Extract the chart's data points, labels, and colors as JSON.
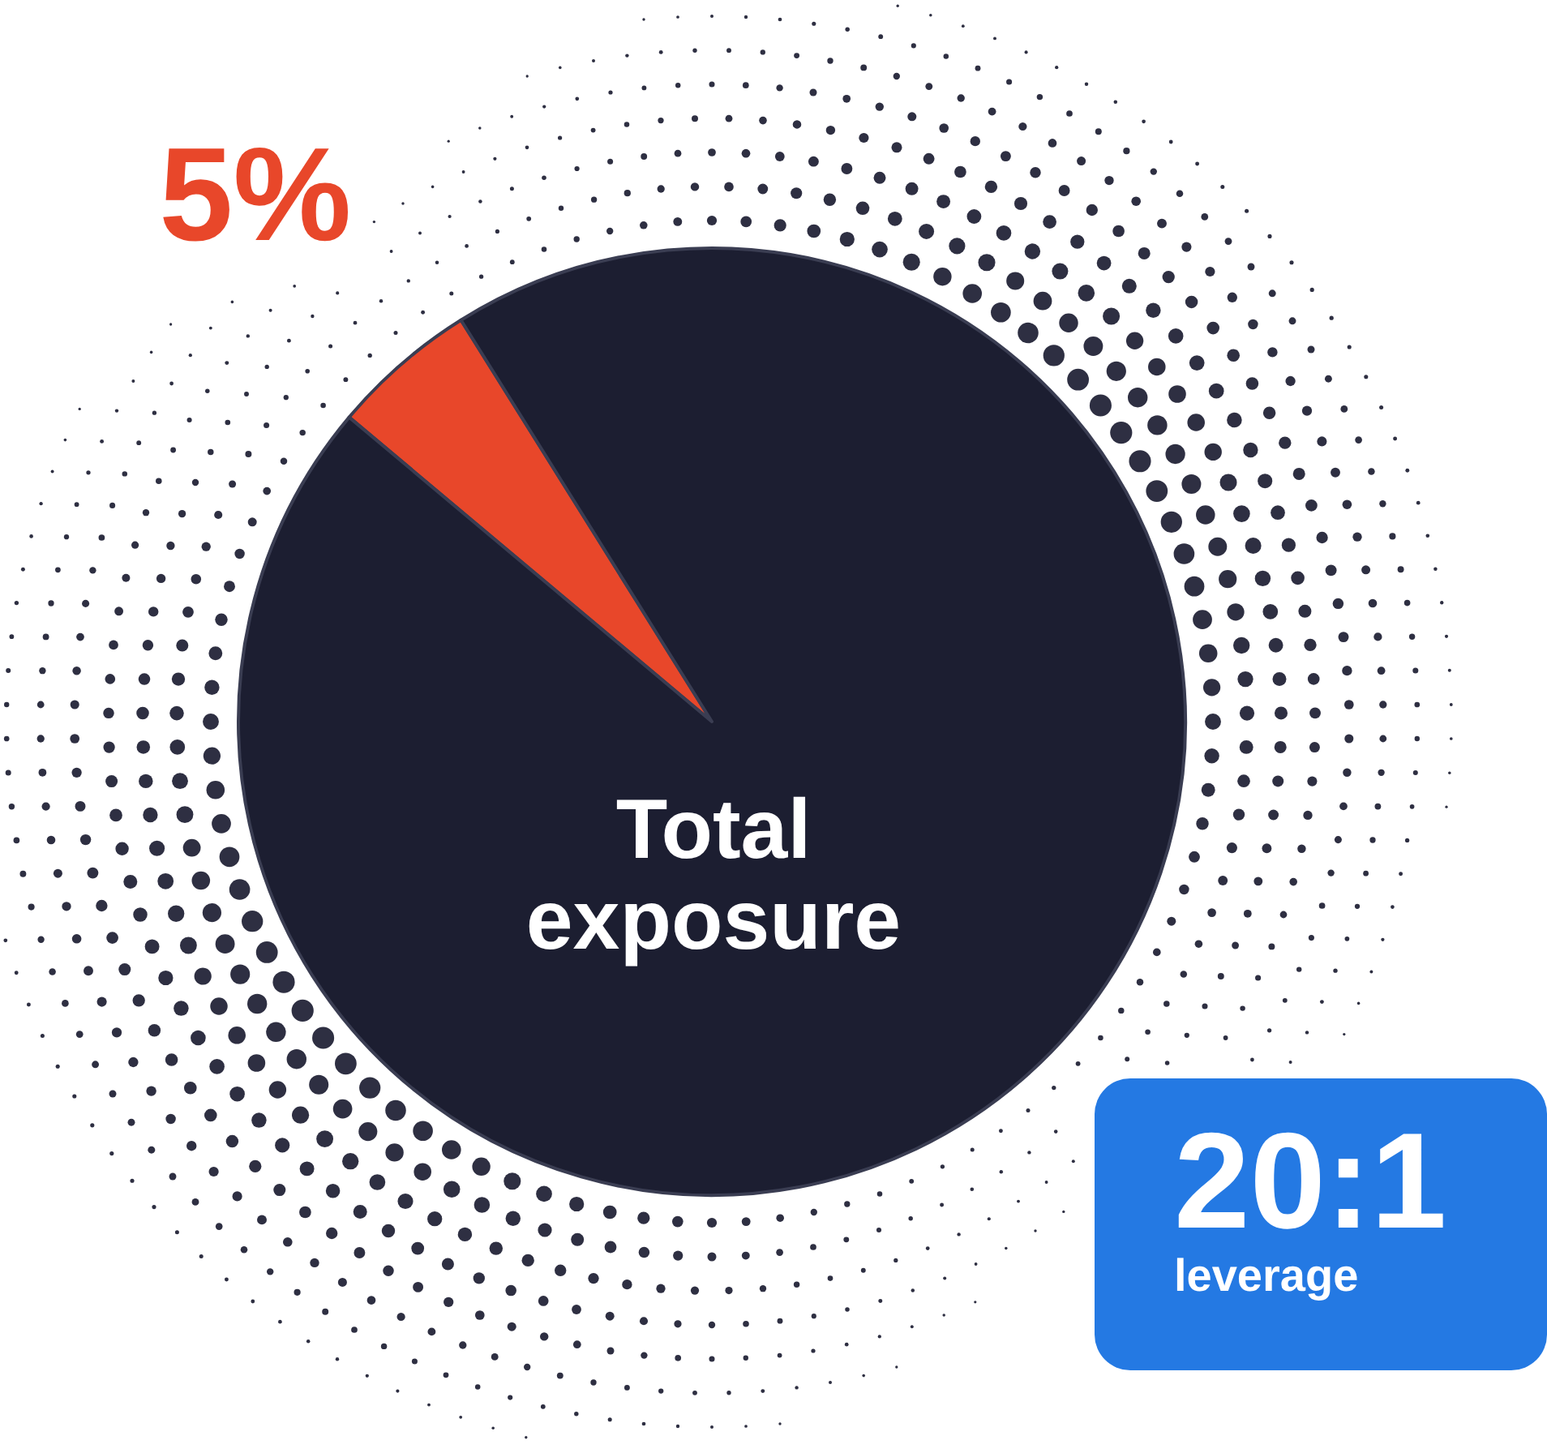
{
  "chart_data": {
    "type": "pie",
    "categories": [
      null,
      null
    ],
    "values": [
      5,
      95
    ],
    "colors": [
      "#e8472a",
      "#1c1e31"
    ],
    "value_labels": [
      "5%",
      null
    ],
    "annotations": [
      "Total exposure",
      "20:1",
      "leverage"
    ]
  }
}
